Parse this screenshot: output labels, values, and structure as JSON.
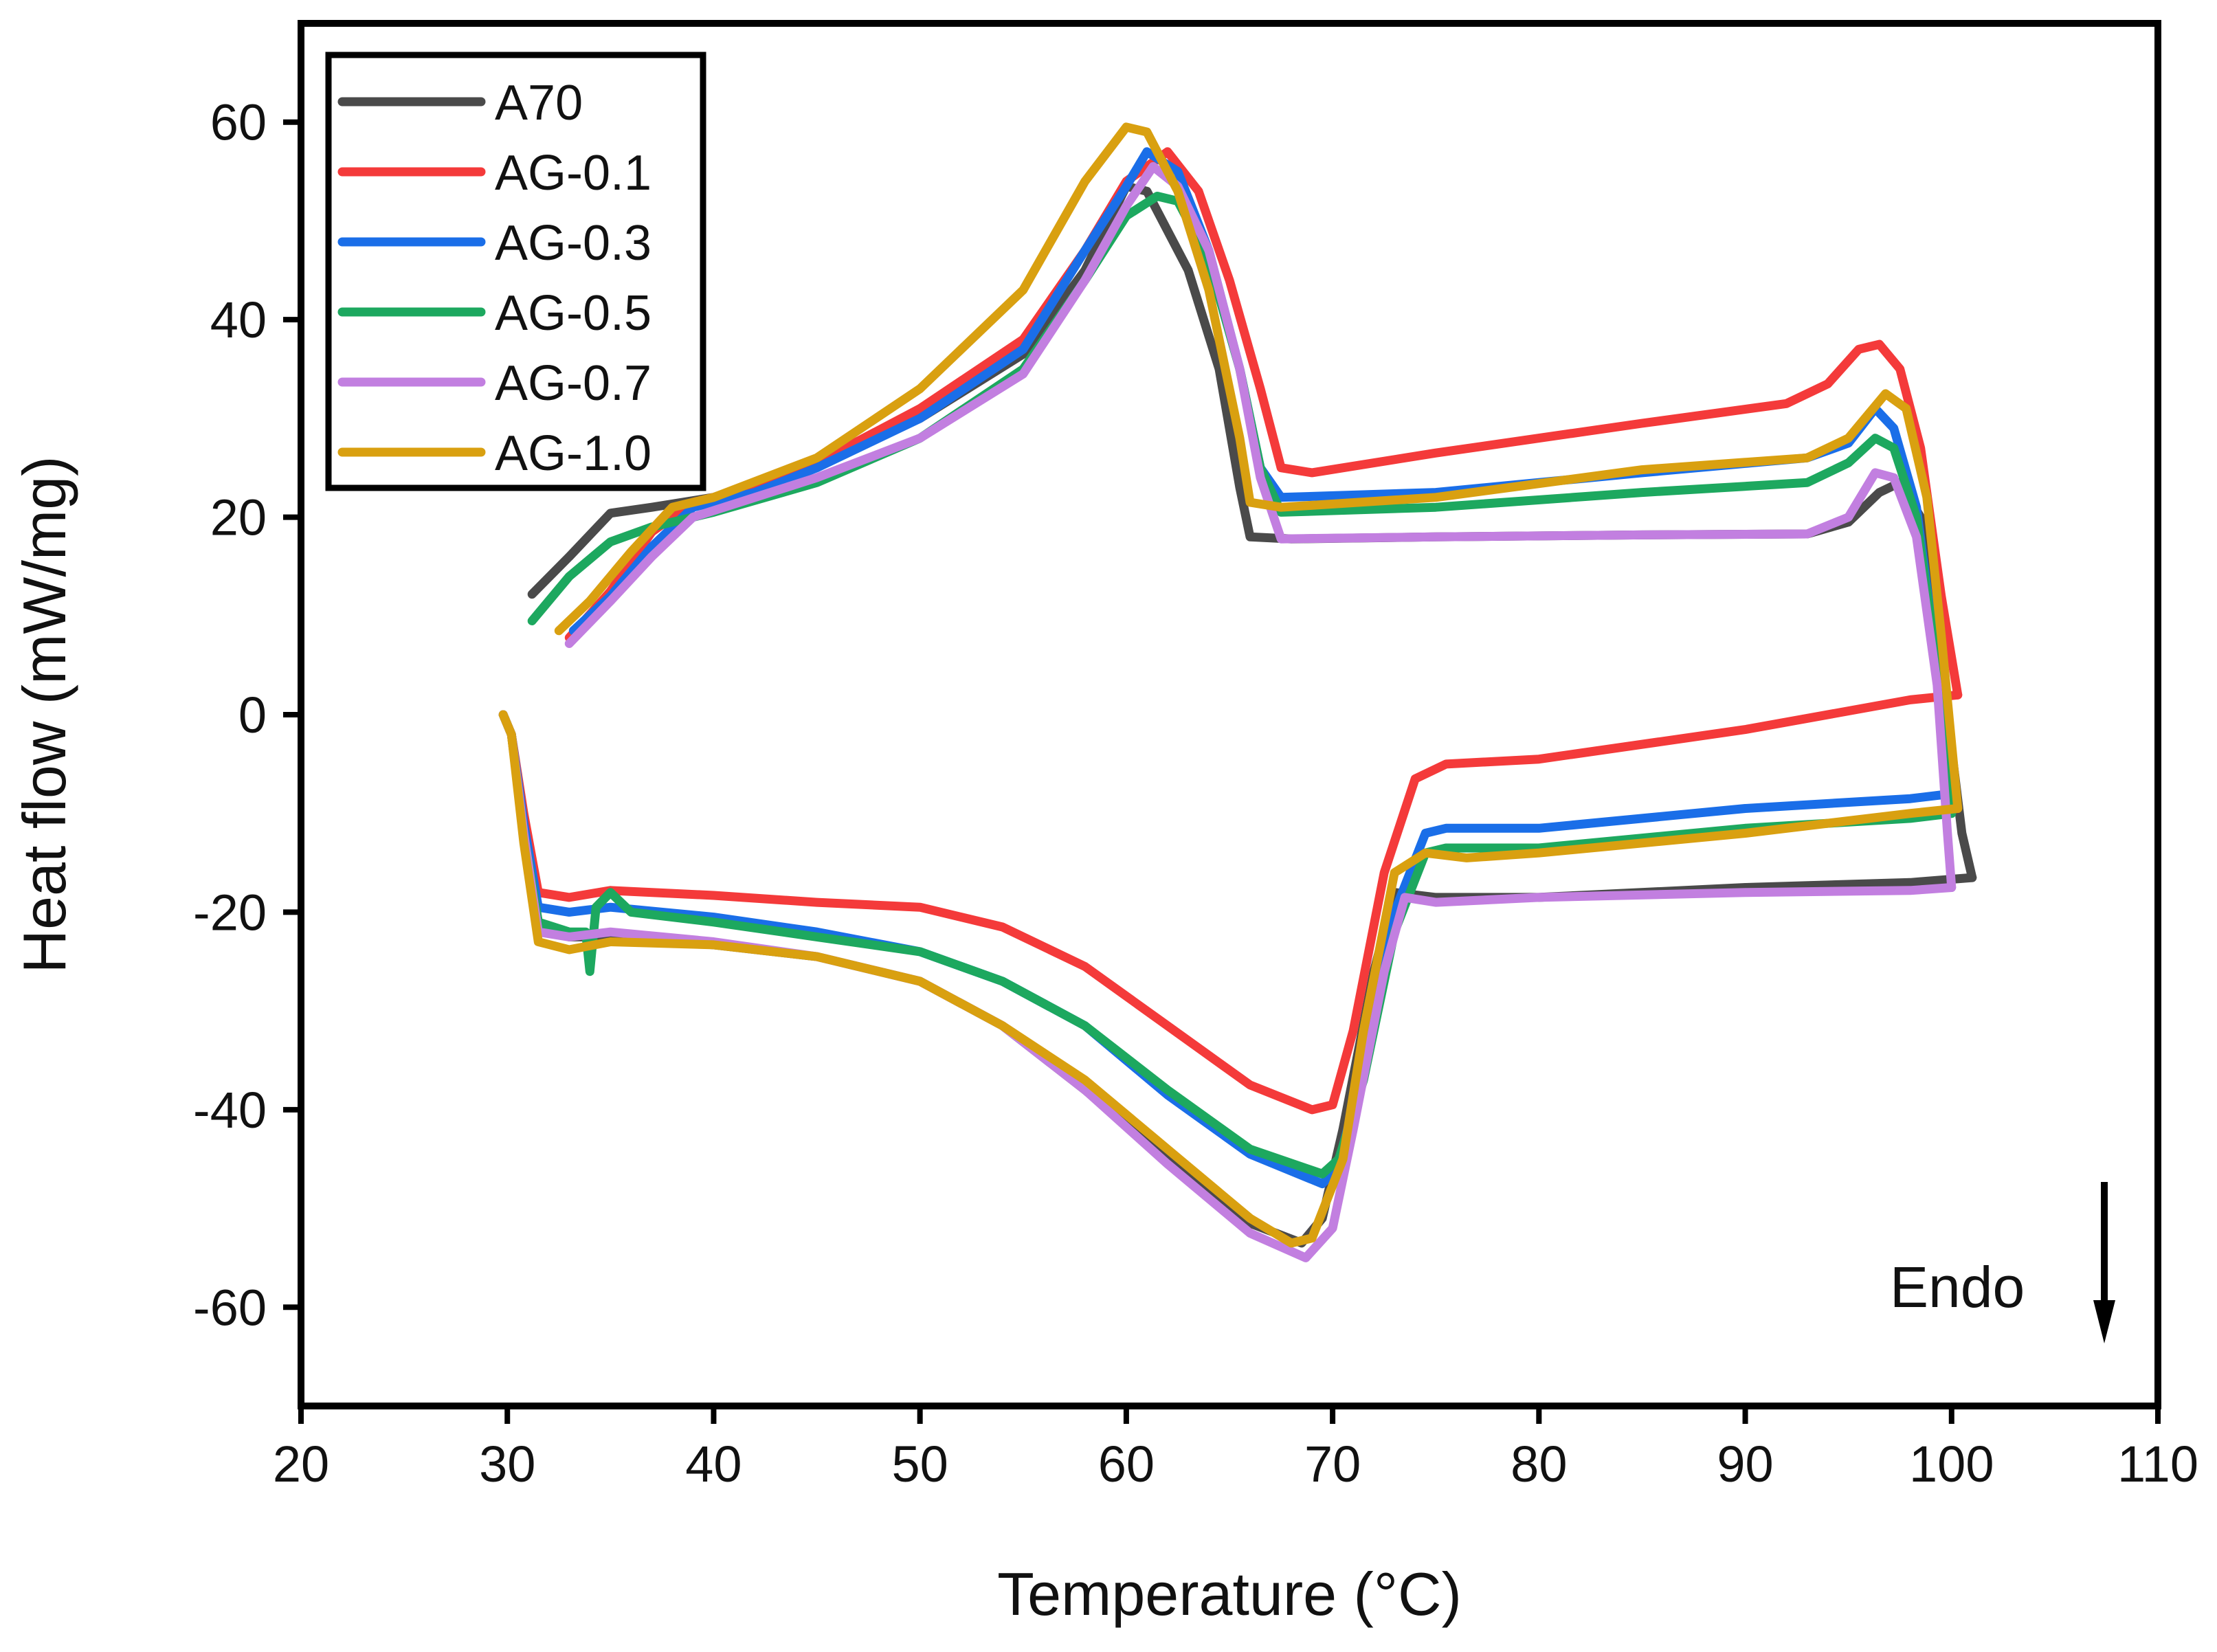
{
  "chart_data": {
    "type": "line",
    "title": "",
    "xlabel": "Temperature (°C)",
    "ylabel": "Heat flow (mW/mg)",
    "xlim": [
      20,
      110
    ],
    "ylim": [
      -70,
      70
    ],
    "xticks": [
      20,
      30,
      40,
      50,
      60,
      70,
      80,
      90,
      100,
      110
    ],
    "yticks": [
      60,
      40,
      20,
      0,
      -20,
      -40,
      -60
    ],
    "xtick_labels": [
      "20",
      "30",
      "40",
      "50",
      "60",
      "70",
      "80",
      "90",
      "100",
      "110"
    ],
    "ytick_labels": [
      "60",
      "40",
      "20",
      "0",
      "-20",
      "-40",
      "-60"
    ],
    "grid": false,
    "legend_position": "top-left",
    "annotation": {
      "text": "Endo",
      "arrow": "down"
    },
    "series": [
      {
        "name": "A70",
        "color": "#4a4a4a",
        "heating": [
          [
            31.2,
            12.2
          ],
          [
            33,
            16
          ],
          [
            35,
            20.4
          ],
          [
            37,
            21
          ],
          [
            40,
            22
          ],
          [
            45,
            25.5
          ],
          [
            50,
            30
          ],
          [
            55,
            36.5
          ],
          [
            58,
            45
          ],
          [
            60,
            53.5
          ],
          [
            61,
            53
          ],
          [
            63,
            45
          ],
          [
            64.5,
            35
          ],
          [
            65.5,
            23
          ],
          [
            66,
            18
          ],
          [
            68,
            17.8
          ],
          [
            75,
            18
          ],
          [
            85,
            18.2
          ],
          [
            93,
            18.3
          ],
          [
            95,
            19.5
          ],
          [
            96.5,
            22.5
          ],
          [
            97.5,
            23.5
          ],
          [
            98.5,
            20
          ],
          [
            99.5,
            5
          ],
          [
            100.5,
            -12
          ],
          [
            101,
            -16.5
          ]
        ],
        "cooling": [
          [
            101,
            -16.5
          ],
          [
            98,
            -17
          ],
          [
            90,
            -17.5
          ],
          [
            80,
            -18.5
          ],
          [
            75,
            -18.5
          ],
          [
            73,
            -18
          ],
          [
            72,
            -26
          ],
          [
            70.5,
            -42
          ],
          [
            69.5,
            -51
          ],
          [
            68.5,
            -53.5
          ],
          [
            66,
            -51.5
          ],
          [
            62,
            -45
          ],
          [
            58,
            -38
          ],
          [
            54,
            -31.5
          ],
          [
            50,
            -27
          ],
          [
            45,
            -24.5
          ],
          [
            40,
            -23.3
          ],
          [
            35,
            -22.5
          ],
          [
            33,
            -22.5
          ],
          [
            31.5,
            -21
          ],
          [
            30.8,
            -12
          ],
          [
            30.2,
            -2
          ],
          [
            29.8,
            0
          ]
        ]
      },
      {
        "name": "AG-0.1",
        "color": "#f43a3a",
        "heating": [
          [
            33,
            7.8
          ],
          [
            35,
            12.5
          ],
          [
            37,
            18.5
          ],
          [
            39,
            21.5
          ],
          [
            42,
            23
          ],
          [
            45,
            25.5
          ],
          [
            50,
            31
          ],
          [
            55,
            38
          ],
          [
            58,
            47
          ],
          [
            60,
            54
          ],
          [
            62,
            57
          ],
          [
            63.5,
            53
          ],
          [
            65,
            44
          ],
          [
            66.5,
            33
          ],
          [
            67.5,
            25
          ],
          [
            69,
            24.5
          ],
          [
            75,
            26.5
          ],
          [
            85,
            29.5
          ],
          [
            92,
            31.5
          ],
          [
            94,
            33.5
          ],
          [
            95.5,
            37
          ],
          [
            96.5,
            37.5
          ],
          [
            97.5,
            35
          ],
          [
            98.5,
            27
          ],
          [
            99.5,
            12
          ],
          [
            100.3,
            2
          ]
        ],
        "cooling": [
          [
            100.3,
            2
          ],
          [
            98,
            1.5
          ],
          [
            90,
            -1.5
          ],
          [
            80,
            -4.5
          ],
          [
            75.5,
            -5
          ],
          [
            74,
            -6.5
          ],
          [
            72.5,
            -16
          ],
          [
            71,
            -32
          ],
          [
            70,
            -39.5
          ],
          [
            69,
            -40
          ],
          [
            66,
            -37.5
          ],
          [
            62,
            -31.5
          ],
          [
            58,
            -25.5
          ],
          [
            54,
            -21.5
          ],
          [
            50,
            -19.5
          ],
          [
            45,
            -19
          ],
          [
            40,
            -18.3
          ],
          [
            35,
            -17.8
          ],
          [
            33,
            -18.5
          ],
          [
            31.5,
            -18
          ],
          [
            30.8,
            -10
          ],
          [
            30.2,
            -2
          ],
          [
            29.8,
            0
          ]
        ]
      },
      {
        "name": "AG-0.3",
        "color": "#1a6ee8",
        "heating": [
          [
            33.2,
            8.5
          ],
          [
            35,
            12
          ],
          [
            37,
            17
          ],
          [
            39,
            21
          ],
          [
            42,
            22.5
          ],
          [
            45,
            25
          ],
          [
            50,
            30
          ],
          [
            55,
            37
          ],
          [
            58,
            47
          ],
          [
            60,
            53.5
          ],
          [
            61,
            57
          ],
          [
            62.5,
            55
          ],
          [
            64,
            47
          ],
          [
            65.5,
            35
          ],
          [
            66.5,
            25
          ],
          [
            67.5,
            22
          ],
          [
            75,
            22.5
          ],
          [
            85,
            24.5
          ],
          [
            93,
            26
          ],
          [
            95,
            27.5
          ],
          [
            96.3,
            31
          ],
          [
            97.2,
            29
          ],
          [
            98.3,
            21
          ],
          [
            99.3,
            5
          ],
          [
            100,
            -8
          ]
        ],
        "cooling": [
          [
            100,
            -8
          ],
          [
            98,
            -8.5
          ],
          [
            90,
            -9.5
          ],
          [
            80,
            -11.5
          ],
          [
            75.5,
            -11.5
          ],
          [
            74.5,
            -12
          ],
          [
            73,
            -20
          ],
          [
            71.5,
            -36
          ],
          [
            70.2,
            -46
          ],
          [
            69.5,
            -47.5
          ],
          [
            66,
            -44.5
          ],
          [
            62,
            -38.5
          ],
          [
            58,
            -31.5
          ],
          [
            54,
            -27
          ],
          [
            50,
            -24
          ],
          [
            45,
            -22
          ],
          [
            40,
            -20.5
          ],
          [
            35,
            -19.5
          ],
          [
            33,
            -20
          ],
          [
            31.5,
            -19.5
          ],
          [
            30.8,
            -11
          ],
          [
            30.2,
            -2
          ],
          [
            29.8,
            0
          ]
        ]
      },
      {
        "name": "AG-0.5",
        "color": "#1da85f",
        "heating": [
          [
            31.2,
            9.5
          ],
          [
            33,
            14
          ],
          [
            35,
            17.5
          ],
          [
            37,
            19
          ],
          [
            40,
            20.5
          ],
          [
            45,
            23.5
          ],
          [
            50,
            28
          ],
          [
            55,
            35
          ],
          [
            58,
            44
          ],
          [
            60,
            50.5
          ],
          [
            61.5,
            52.5
          ],
          [
            62.5,
            52
          ],
          [
            64,
            46
          ],
          [
            65.5,
            35
          ],
          [
            66.5,
            25
          ],
          [
            67.5,
            20.5
          ],
          [
            75,
            21
          ],
          [
            85,
            22.5
          ],
          [
            93,
            23.5
          ],
          [
            95,
            25.5
          ],
          [
            96.3,
            28
          ],
          [
            97.2,
            27
          ],
          [
            98.3,
            20
          ],
          [
            99.3,
            5
          ],
          [
            100,
            -10
          ]
        ],
        "cooling": [
          [
            100,
            -10
          ],
          [
            98,
            -10.5
          ],
          [
            90,
            -11.5
          ],
          [
            80,
            -13.5
          ],
          [
            75.5,
            -13.5
          ],
          [
            74.5,
            -14
          ],
          [
            73,
            -22
          ],
          [
            71.5,
            -37
          ],
          [
            70.3,
            -45
          ],
          [
            69.5,
            -46.5
          ],
          [
            66,
            -44
          ],
          [
            62,
            -38
          ],
          [
            58,
            -31.5
          ],
          [
            54,
            -27
          ],
          [
            50,
            -24
          ],
          [
            45,
            -22.5
          ],
          [
            40,
            -21
          ],
          [
            36,
            -20
          ],
          [
            35,
            -18
          ],
          [
            34.3,
            -19.5
          ],
          [
            34,
            -26
          ],
          [
            33.8,
            -22
          ],
          [
            33,
            -22
          ],
          [
            31.5,
            -21
          ],
          [
            30.8,
            -12
          ],
          [
            30.2,
            -2
          ],
          [
            29.8,
            0
          ]
        ]
      },
      {
        "name": "AG-0.7",
        "color": "#c27fe0",
        "heating": [
          [
            33,
            7.2
          ],
          [
            35,
            11.5
          ],
          [
            37,
            16
          ],
          [
            39,
            20
          ],
          [
            42,
            22
          ],
          [
            45,
            24
          ],
          [
            50,
            28
          ],
          [
            55,
            34.5
          ],
          [
            58,
            44
          ],
          [
            60,
            51.5
          ],
          [
            61.3,
            55.5
          ],
          [
            62.5,
            53.5
          ],
          [
            64,
            47
          ],
          [
            65.5,
            35
          ],
          [
            66.5,
            24
          ],
          [
            67.5,
            17.8
          ],
          [
            75,
            18
          ],
          [
            85,
            18.2
          ],
          [
            93,
            18.3
          ],
          [
            95,
            20
          ],
          [
            96.3,
            24.5
          ],
          [
            97.2,
            24
          ],
          [
            98.3,
            18
          ],
          [
            99.3,
            3
          ],
          [
            99.8,
            -12
          ],
          [
            100,
            -17.5
          ]
        ],
        "cooling": [
          [
            100,
            -17.5
          ],
          [
            98,
            -17.8
          ],
          [
            90,
            -18
          ],
          [
            80,
            -18.5
          ],
          [
            75,
            -19
          ],
          [
            73.5,
            -18.5
          ],
          [
            72.5,
            -26
          ],
          [
            71,
            -42
          ],
          [
            70,
            -52
          ],
          [
            68.7,
            -55
          ],
          [
            66,
            -52.5
          ],
          [
            62,
            -45.5
          ],
          [
            58,
            -38
          ],
          [
            54,
            -31.5
          ],
          [
            50,
            -27
          ],
          [
            45,
            -24.5
          ],
          [
            40,
            -23
          ],
          [
            35,
            -22
          ],
          [
            33,
            -22.5
          ],
          [
            31.5,
            -22
          ],
          [
            30.8,
            -12
          ],
          [
            30.2,
            -2
          ],
          [
            29.8,
            0
          ]
        ]
      },
      {
        "name": "AG-1.0",
        "color": "#d9a010",
        "heating": [
          [
            32.5,
            8.5
          ],
          [
            34,
            11.5
          ],
          [
            36,
            16.5
          ],
          [
            38,
            21
          ],
          [
            40,
            22
          ],
          [
            45,
            26
          ],
          [
            50,
            33
          ],
          [
            55,
            43
          ],
          [
            58,
            54
          ],
          [
            60,
            59.5
          ],
          [
            61,
            59
          ],
          [
            62.5,
            53
          ],
          [
            64,
            43
          ],
          [
            65.5,
            28
          ],
          [
            66,
            21.5
          ],
          [
            67.5,
            21
          ],
          [
            75,
            22
          ],
          [
            85,
            24.8
          ],
          [
            93,
            26
          ],
          [
            95,
            28
          ],
          [
            96.8,
            32.5
          ],
          [
            97.8,
            31
          ],
          [
            98.8,
            22
          ],
          [
            99.5,
            8
          ],
          [
            100.3,
            -9.5
          ]
        ],
        "cooling": [
          [
            100.3,
            -9.5
          ],
          [
            98,
            -10
          ],
          [
            90,
            -12
          ],
          [
            80,
            -14
          ],
          [
            76.5,
            -14.5
          ],
          [
            74.5,
            -14
          ],
          [
            73,
            -16
          ],
          [
            71.5,
            -32
          ],
          [
            70.5,
            -45
          ],
          [
            69,
            -53
          ],
          [
            68,
            -53.5
          ],
          [
            66,
            -51
          ],
          [
            62,
            -44
          ],
          [
            58,
            -37
          ],
          [
            54,
            -31.5
          ],
          [
            50,
            -27
          ],
          [
            45,
            -24.5
          ],
          [
            40,
            -23.3
          ],
          [
            35,
            -23
          ],
          [
            33,
            -23.8
          ],
          [
            31.5,
            -23
          ],
          [
            30.8,
            -13
          ],
          [
            30.2,
            -2
          ],
          [
            29.8,
            0
          ]
        ]
      }
    ]
  }
}
